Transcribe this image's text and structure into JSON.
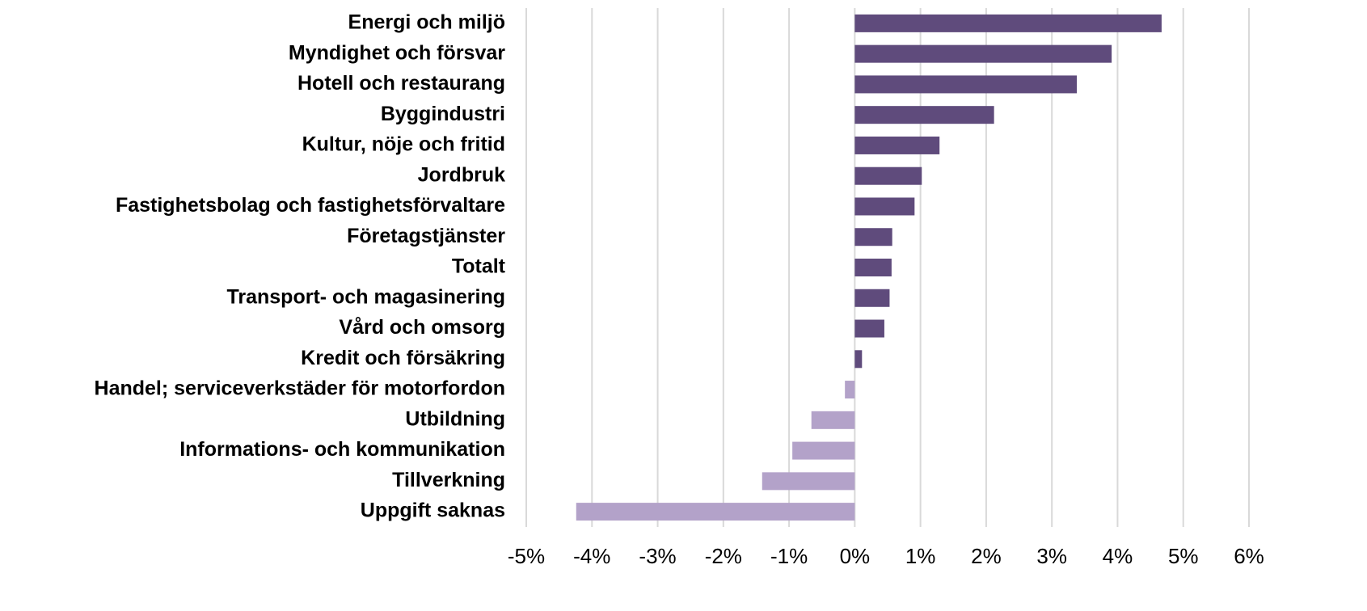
{
  "chart_data": {
    "type": "barh",
    "categories": [
      "Energi och miljö",
      "Myndighet och försvar",
      "Hotell och restaurang",
      "Byggindustri",
      "Kultur, nöje och fritid",
      "Jordbruk",
      "Fastighetsbolag och fastighetsförvaltare",
      "Företagstjänster",
      "Totalt",
      "Transport- och magasinering",
      "Vård och omsorg",
      "Kredit och försäkring",
      "Handel; serviceverkstäder för motorfordon",
      "Utbildning",
      "Informations- och kommunikation",
      "Tillverkning",
      "Uppgift saknas"
    ],
    "values": [
      4.67,
      3.91,
      3.38,
      2.12,
      1.29,
      1.02,
      0.91,
      0.57,
      0.56,
      0.53,
      0.45,
      0.11,
      -0.15,
      -0.66,
      -0.95,
      -1.41,
      -4.24
    ],
    "color": "#5f4b7c",
    "negative_color": "#b3a2c9",
    "xlim": [
      -5,
      6
    ],
    "xticks": [
      {
        "value": -5,
        "label": "-5%"
      },
      {
        "value": -4,
        "label": "-4%"
      },
      {
        "value": -3,
        "label": "-3%"
      },
      {
        "value": -2,
        "label": "-2%"
      },
      {
        "value": -1,
        "label": "-1%"
      },
      {
        "value": 0,
        "label": "0%"
      },
      {
        "value": 1,
        "label": "1%"
      },
      {
        "value": 2,
        "label": "2%"
      },
      {
        "value": 3,
        "label": "3%"
      },
      {
        "value": 4,
        "label": "4%"
      },
      {
        "value": 5,
        "label": "5%"
      },
      {
        "value": 6,
        "label": "6%"
      }
    ],
    "grid": true
  }
}
